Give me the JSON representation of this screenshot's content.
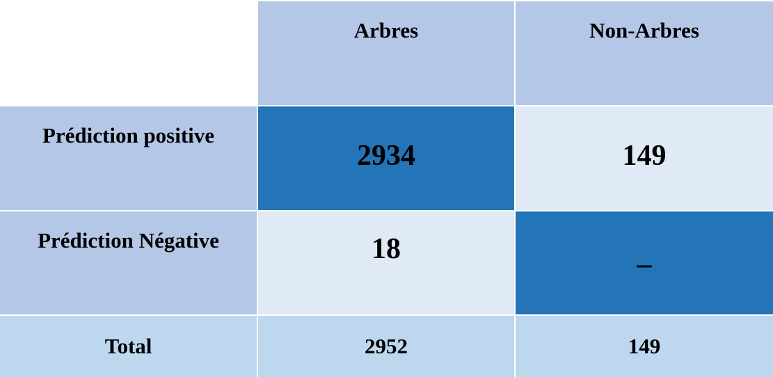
{
  "table": {
    "columns": [
      "Arbres",
      "Non-Arbres"
    ],
    "rows": [
      {
        "label": "Prédiction positive",
        "cells": [
          2934,
          149
        ]
      },
      {
        "label": "Prédiction Négative",
        "cells": [
          18,
          "–"
        ]
      }
    ],
    "total": {
      "label": "Total",
      "values": [
        2952,
        149
      ]
    }
  }
}
